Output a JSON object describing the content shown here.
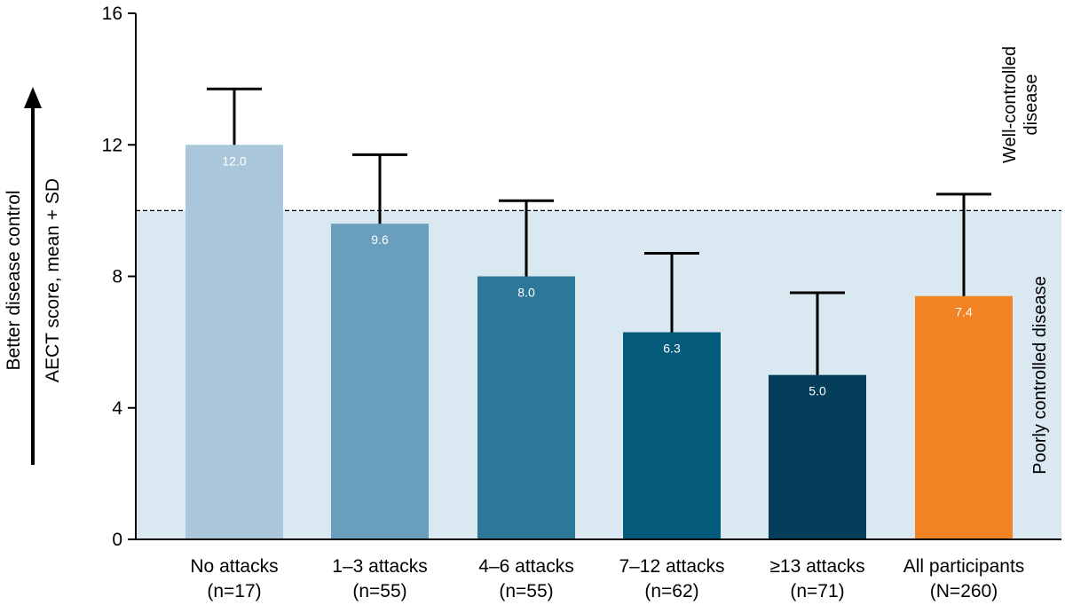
{
  "chart_data": {
    "type": "bar",
    "categories": [
      "No attacks",
      "1–3 attacks",
      "4–6 attacks",
      "7–12 attacks",
      "≥13 attacks",
      "All participants"
    ],
    "category_n": [
      "(n=17)",
      "(n=55)",
      "(n=55)",
      "(n=62)",
      "(n=71)",
      "(N=260)"
    ],
    "values": [
      12.0,
      9.6,
      8.0,
      6.3,
      5.0,
      7.4
    ],
    "value_labels": [
      "12.0",
      "9.6",
      "8.0",
      "6.3",
      "5.0",
      "7.4"
    ],
    "error_upper": [
      13.7,
      11.7,
      10.3,
      8.7,
      7.5,
      10.5
    ],
    "colors": [
      "#a9c6da",
      "#6a9ebd",
      "#2d7898",
      "#045a7a",
      "#043e5a",
      "#f28322"
    ],
    "ylim": [
      0,
      16
    ],
    "yticks": [
      0,
      4,
      8,
      12,
      16
    ],
    "ytick_labels": [
      "0",
      "4",
      "8",
      "12",
      "16"
    ],
    "ylabel": "AECT score, mean + SD",
    "arrow_label": "Better disease control",
    "threshold": 10,
    "threshold_style": "dashed",
    "region_labels": {
      "upper_line1": "Well-controlled",
      "upper_line2": "disease",
      "lower": "Poorly controlled disease"
    },
    "shading_color": "#d9e8f1",
    "value_label_color": "#ffffff"
  }
}
